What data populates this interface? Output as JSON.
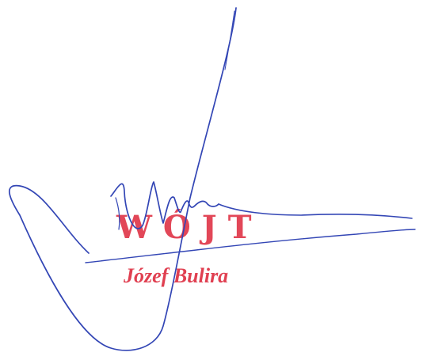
{
  "stamp": {
    "title": "WÓJT",
    "name": "Józef Bulira",
    "color": "#e03a4c"
  },
  "signature": {
    "ink_color": "#3346b5"
  },
  "background_color": "#ffffff"
}
